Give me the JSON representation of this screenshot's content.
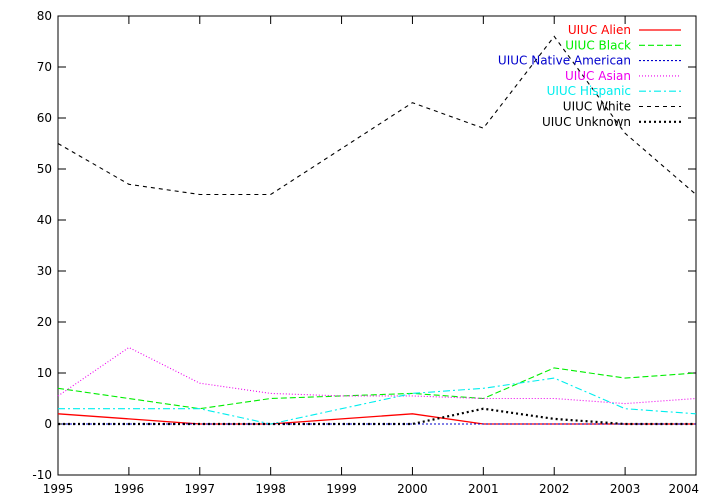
{
  "chart_data": {
    "type": "line",
    "title": "",
    "xlabel": "",
    "ylabel": "",
    "x": [
      1995,
      1996,
      1997,
      1998,
      1999,
      2000,
      2001,
      2002,
      2003,
      2004
    ],
    "xlim": [
      1995,
      2004
    ],
    "ylim": [
      -10,
      80
    ],
    "yticks": [
      -10,
      0,
      10,
      20,
      30,
      40,
      50,
      60,
      70,
      80
    ],
    "xticks": [
      1995,
      1996,
      1997,
      1998,
      1999,
      2000,
      2001,
      2002,
      2003,
      2004
    ],
    "grid": false,
    "legend_position": "top-right",
    "series": [
      {
        "name": "UIUC Alien",
        "color": "#ff0000",
        "dash": "solid",
        "values": [
          2,
          1,
          0,
          0,
          1,
          2,
          0,
          0,
          0,
          0
        ]
      },
      {
        "name": "UIUC Black",
        "color": "#00ee00",
        "dash": "dashed",
        "values": [
          7,
          5,
          3,
          5,
          5.5,
          6,
          5,
          11,
          9,
          10
        ]
      },
      {
        "name": "UIUC Native American",
        "color": "#0000cc",
        "dash": "dotted",
        "values": [
          0,
          0,
          0,
          0,
          0,
          0,
          0,
          0,
          0,
          0
        ]
      },
      {
        "name": "UIUC Asian",
        "color": "#ee00ee",
        "dash": "dotted-fine",
        "values": [
          5.5,
          15,
          8,
          6,
          5.5,
          5.5,
          5,
          5,
          4,
          5
        ]
      },
      {
        "name": "UIUC Hispanic",
        "color": "#00eeee",
        "dash": "dash-dot",
        "values": [
          3,
          3,
          3,
          0,
          3,
          6,
          7,
          9,
          3,
          2
        ]
      },
      {
        "name": "UIUC White",
        "color": "#000000",
        "dash": "long-dash",
        "values": [
          55,
          47,
          45,
          45,
          54,
          63,
          58,
          76,
          57,
          45
        ]
      },
      {
        "name": "UIUC Unknown",
        "color": "#000000",
        "dash": "dotted-bold",
        "values": [
          0,
          0,
          0,
          0,
          0,
          0,
          3,
          1,
          0,
          0
        ]
      }
    ]
  }
}
